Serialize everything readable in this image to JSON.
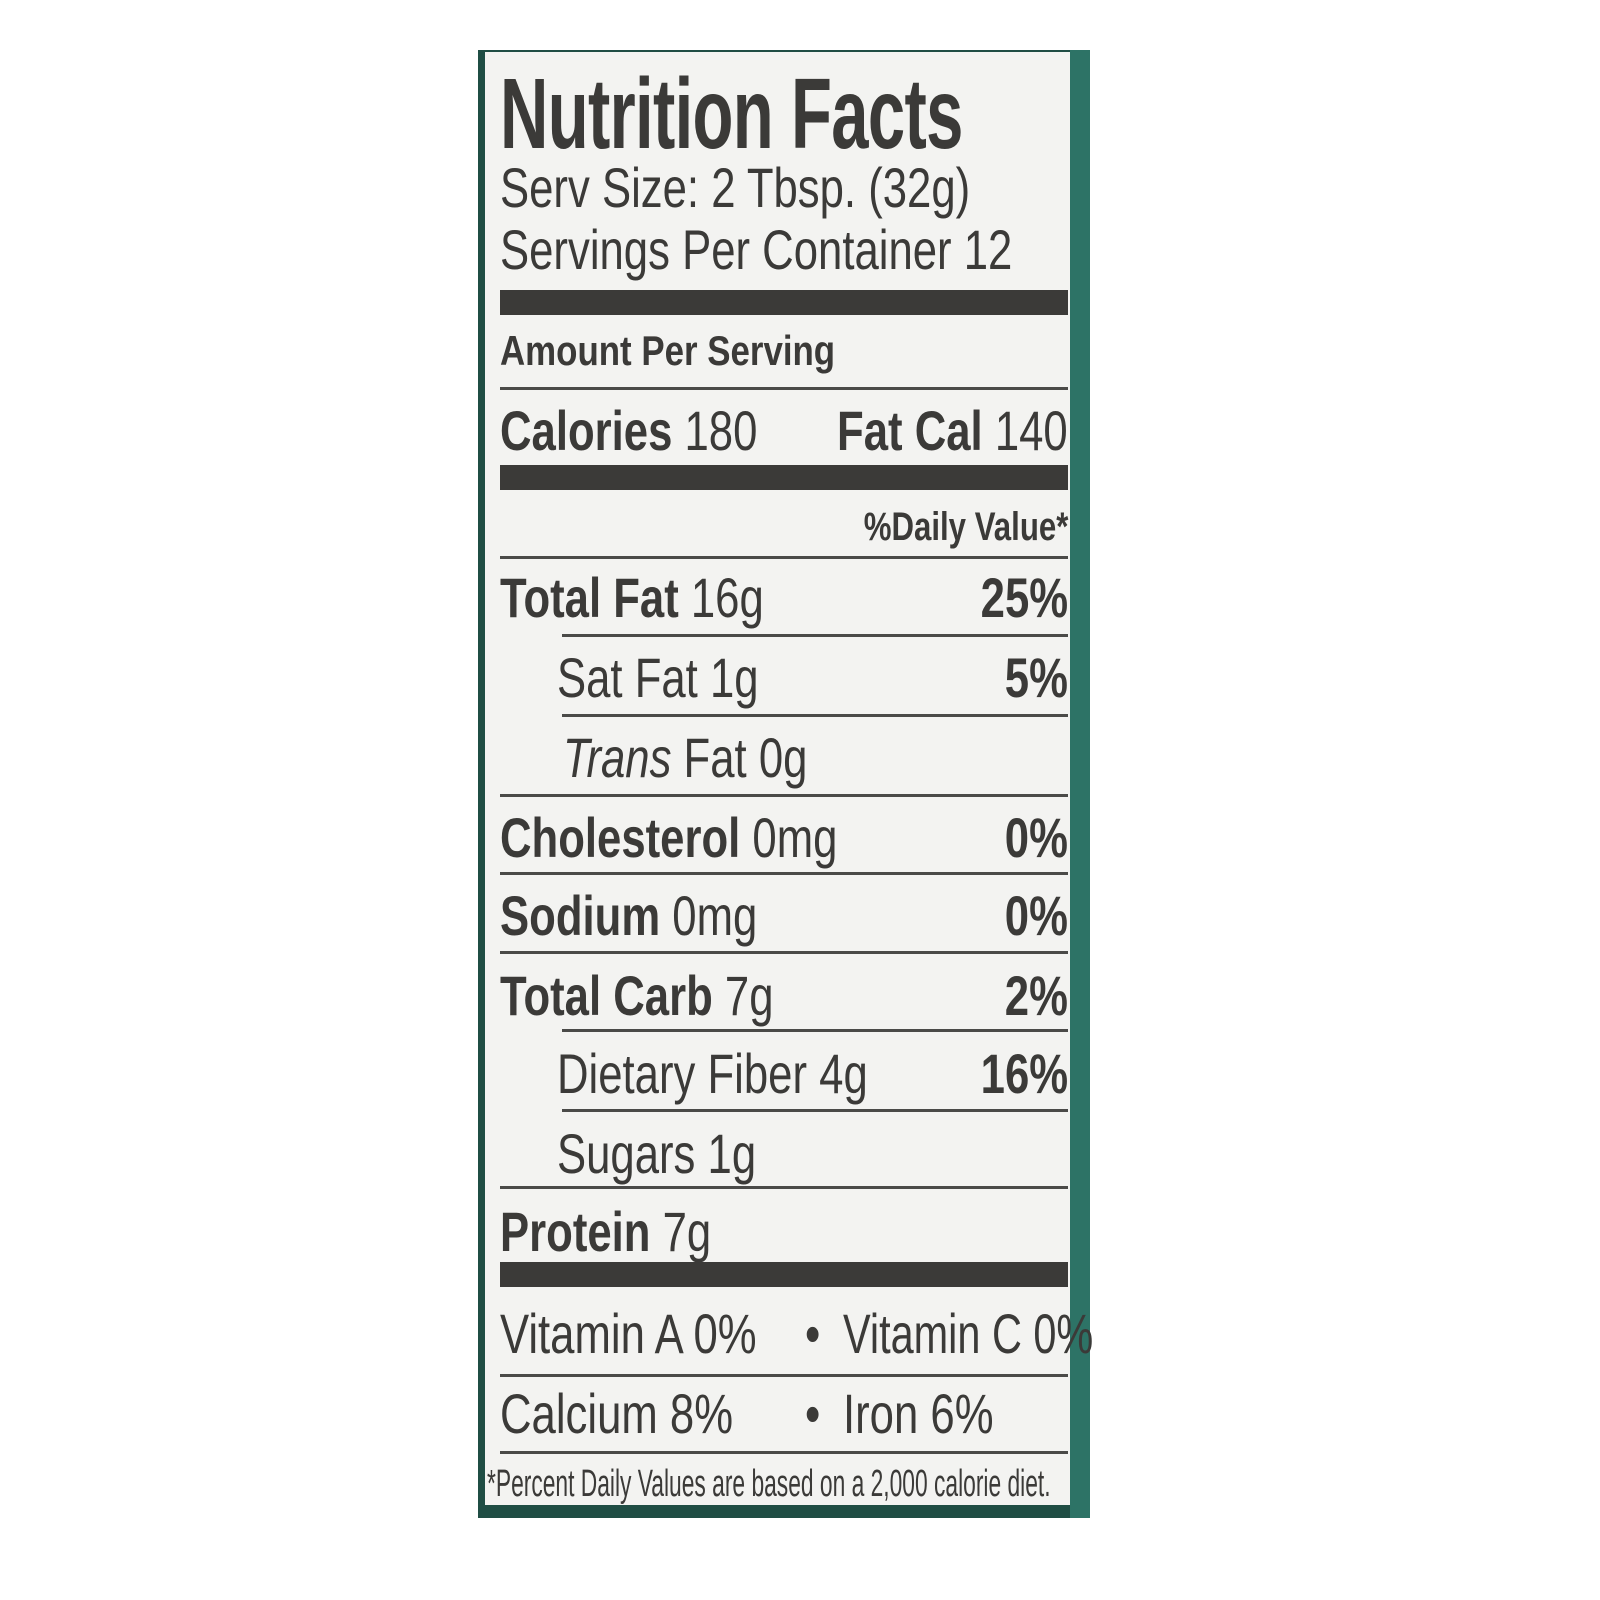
{
  "title": "Nutrition Facts",
  "serving_size": "Serv Size: 2 Tbsp. (32g)",
  "servings_per_container": "Servings Per Container 12",
  "amount_per_serving": "Amount Per Serving",
  "calories": {
    "label": "Calories",
    "value": "180",
    "fat_label": "Fat Cal",
    "fat_value": "140"
  },
  "daily_value_header": "%Daily Value*",
  "nutrients": [
    {
      "label": "Total Fat",
      "amount": "16g",
      "dv": "25%"
    },
    {
      "label": "Sat Fat",
      "amount": "1g",
      "dv": "5%"
    },
    {
      "label": "Trans",
      "label_rest": "Fat",
      "amount": "0g"
    },
    {
      "label": "Cholesterol",
      "amount": "0mg",
      "dv": "0%"
    },
    {
      "label": "Sodium",
      "amount": "0mg",
      "dv": "0%"
    },
    {
      "label": "Total Carb",
      "amount": "7g",
      "dv": "2%"
    },
    {
      "label": "Dietary Fiber",
      "amount": "4g",
      "dv": "16%"
    },
    {
      "label": "Sugars",
      "amount": "1g"
    },
    {
      "label": "Protein",
      "amount": "7g"
    }
  ],
  "vitamins": {
    "row1": {
      "left": "Vitamin A 0%",
      "bullet": "•",
      "right": "Vitamin C 0%"
    },
    "row2": {
      "left": "Calcium 8%",
      "bullet": "•",
      "right": "Iron 6%"
    }
  },
  "footnote": "*Percent Daily Values are based on a 2,000 calorie diet.",
  "colors": {
    "ink": "#3b3a38",
    "paper": "#f3f3f1",
    "package_green": "#2d7366"
  }
}
